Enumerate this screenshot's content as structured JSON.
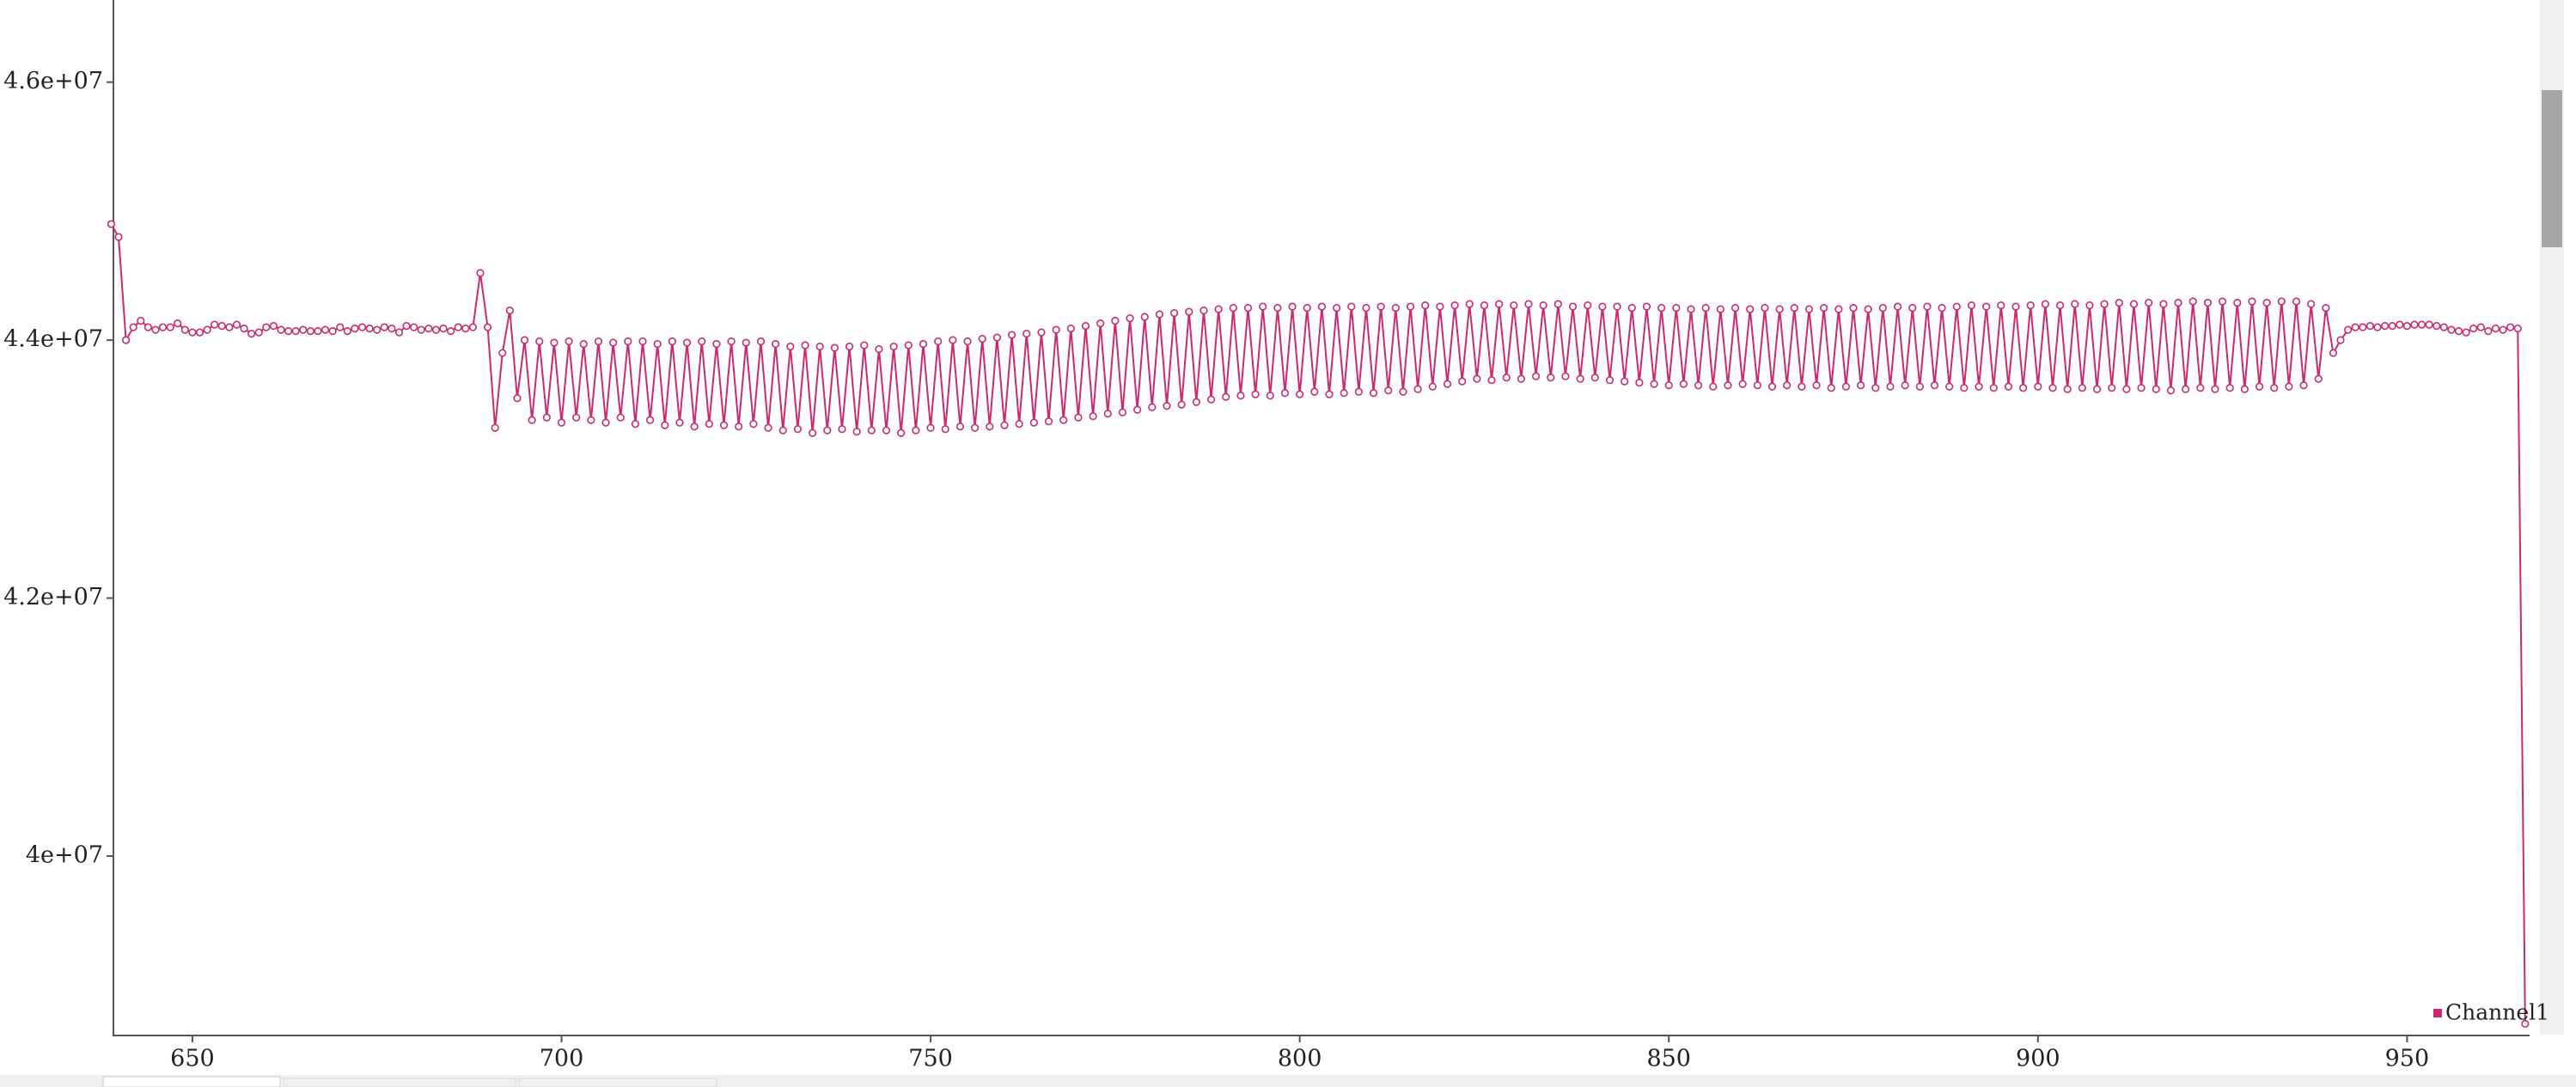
{
  "chart_data": {
    "type": "line",
    "x": [
      639,
      640,
      641,
      642,
      643,
      644,
      645,
      646,
      647,
      648,
      649,
      650,
      651,
      652,
      653,
      654,
      655,
      656,
      657,
      658,
      659,
      660,
      661,
      662,
      663,
      664,
      665,
      666,
      667,
      668,
      669,
      670,
      671,
      672,
      673,
      674,
      675,
      676,
      677,
      678,
      679,
      680,
      681,
      682,
      683,
      684,
      685,
      686,
      687,
      688,
      689,
      690,
      691,
      692,
      693,
      694,
      695,
      696,
      697,
      698,
      699,
      700,
      701,
      702,
      703,
      704,
      705,
      706,
      707,
      708,
      709,
      710,
      711,
      712,
      713,
      714,
      715,
      716,
      717,
      718,
      719,
      720,
      721,
      722,
      723,
      724,
      725,
      726,
      727,
      728,
      729,
      730,
      731,
      732,
      733,
      734,
      735,
      736,
      737,
      738,
      739,
      740,
      741,
      742,
      743,
      744,
      745,
      746,
      747,
      748,
      749,
      750,
      751,
      752,
      753,
      754,
      755,
      756,
      757,
      758,
      759,
      760,
      761,
      762,
      763,
      764,
      765,
      766,
      767,
      768,
      769,
      770,
      771,
      772,
      773,
      774,
      775,
      776,
      777,
      778,
      779,
      780,
      781,
      782,
      783,
      784,
      785,
      786,
      787,
      788,
      789,
      790,
      791,
      792,
      793,
      794,
      795,
      796,
      797,
      798,
      799,
      800,
      801,
      802,
      803,
      804,
      805,
      806,
      807,
      808,
      809,
      810,
      811,
      812,
      813,
      814,
      815,
      816,
      817,
      818,
      819,
      820,
      821,
      822,
      823,
      824,
      825,
      826,
      827,
      828,
      829,
      830,
      831,
      832,
      833,
      834,
      835,
      836,
      837,
      838,
      839,
      840,
      841,
      842,
      843,
      844,
      845,
      846,
      847,
      848,
      849,
      850,
      851,
      852,
      853,
      854,
      855,
      856,
      857,
      858,
      859,
      860,
      861,
      862,
      863,
      864,
      865,
      866,
      867,
      868,
      869,
      870,
      871,
      872,
      873,
      874,
      875,
      876,
      877,
      878,
      879,
      880,
      881,
      882,
      883,
      884,
      885,
      886,
      887,
      888,
      889,
      890,
      891,
      892,
      893,
      894,
      895,
      896,
      897,
      898,
      899,
      900,
      901,
      902,
      903,
      904,
      905,
      906,
      907,
      908,
      909,
      910,
      911,
      912,
      913,
      914,
      915,
      916,
      917,
      918,
      919,
      920,
      921,
      922,
      923,
      924,
      925,
      926,
      927,
      928,
      929,
      930,
      931,
      932,
      933,
      934,
      935,
      936,
      937,
      938,
      939,
      940,
      941,
      942,
      943,
      944,
      945,
      946,
      947,
      948,
      949,
      950,
      951,
      952,
      953,
      954,
      955,
      956,
      957,
      958,
      959,
      960,
      961,
      962,
      963,
      964,
      965,
      966
    ],
    "series": [
      {
        "name": "Channel1",
        "color": "#cc2a6e",
        "values": [
          44900000,
          44800000,
          44000000,
          44100000,
          44150000,
          44100000,
          44080000,
          44100000,
          44100000,
          44130000,
          44080000,
          44060000,
          44060000,
          44080000,
          44120000,
          44110000,
          44100000,
          44120000,
          44090000,
          44050000,
          44060000,
          44100000,
          44110000,
          44080000,
          44070000,
          44070000,
          44080000,
          44070000,
          44070000,
          44080000,
          44070000,
          44100000,
          44070000,
          44090000,
          44100000,
          44090000,
          44080000,
          44100000,
          44090000,
          44060000,
          44110000,
          44100000,
          44080000,
          44090000,
          44080000,
          44090000,
          44070000,
          44100000,
          44090000,
          44100000,
          44520000,
          44100000,
          43320000,
          43900000,
          44230000,
          43550000,
          44000000,
          43380000,
          43990000,
          43400000,
          43980000,
          43360000,
          43990000,
          43400000,
          43970000,
          43380000,
          43990000,
          43360000,
          43980000,
          43400000,
          43990000,
          43350000,
          43990000,
          43380000,
          43970000,
          43340000,
          43990000,
          43360000,
          43980000,
          43330000,
          43990000,
          43350000,
          43970000,
          43340000,
          43990000,
          43330000,
          43980000,
          43350000,
          43990000,
          43320000,
          43970000,
          43300000,
          43950000,
          43310000,
          43960000,
          43280000,
          43950000,
          43300000,
          43940000,
          43310000,
          43950000,
          43290000,
          43960000,
          43300000,
          43930000,
          43300000,
          43950000,
          43280000,
          43960000,
          43300000,
          43970000,
          43320000,
          43990000,
          43310000,
          44000000,
          43330000,
          43990000,
          43320000,
          44010000,
          43330000,
          44020000,
          43340000,
          44040000,
          43350000,
          44050000,
          43360000,
          44060000,
          43370000,
          44080000,
          43380000,
          44090000,
          43400000,
          44110000,
          43410000,
          44130000,
          43430000,
          44150000,
          43440000,
          44170000,
          43460000,
          44180000,
          43480000,
          44200000,
          43490000,
          44210000,
          43500000,
          44220000,
          43520000,
          44230000,
          43540000,
          44240000,
          43560000,
          44250000,
          43570000,
          44250000,
          43580000,
          44260000,
          43570000,
          44250000,
          43590000,
          44260000,
          43580000,
          44250000,
          43600000,
          44260000,
          43580000,
          44250000,
          43590000,
          44260000,
          43600000,
          44250000,
          43590000,
          44260000,
          43610000,
          44250000,
          43600000,
          44260000,
          43620000,
          44270000,
          43640000,
          44260000,
          43660000,
          44270000,
          43680000,
          44280000,
          43700000,
          44270000,
          43690000,
          44280000,
          43710000,
          44270000,
          43700000,
          44280000,
          43720000,
          44270000,
          43710000,
          44280000,
          43720000,
          44260000,
          43700000,
          44270000,
          43710000,
          44260000,
          43690000,
          44260000,
          43680000,
          44250000,
          43670000,
          44260000,
          43660000,
          44250000,
          43650000,
          44250000,
          43660000,
          44240000,
          43650000,
          44250000,
          43640000,
          44240000,
          43650000,
          44250000,
          43660000,
          44240000,
          43650000,
          44250000,
          43640000,
          44240000,
          43650000,
          44250000,
          43640000,
          44240000,
          43650000,
          44250000,
          43630000,
          44240000,
          43640000,
          44250000,
          43650000,
          44240000,
          43630000,
          44250000,
          43640000,
          44260000,
          43650000,
          44250000,
          43640000,
          44260000,
          43650000,
          44250000,
          43640000,
          44260000,
          43630000,
          44270000,
          43640000,
          44260000,
          43630000,
          44270000,
          43640000,
          44260000,
          43630000,
          44270000,
          43640000,
          44280000,
          43630000,
          44270000,
          43620000,
          44280000,
          43630000,
          44270000,
          43620000,
          44280000,
          43630000,
          44290000,
          43620000,
          44280000,
          43630000,
          44290000,
          43620000,
          44280000,
          43610000,
          44290000,
          43620000,
          44300000,
          43630000,
          44290000,
          43620000,
          44300000,
          43630000,
          44290000,
          43620000,
          44300000,
          43640000,
          44290000,
          43630000,
          44300000,
          43640000,
          44300000,
          43650000,
          44280000,
          43700000,
          44250000,
          43900000,
          44000000,
          44080000,
          44100000,
          44100000,
          44110000,
          44100000,
          44110000,
          44110000,
          44120000,
          44110000,
          44120000,
          44120000,
          44120000,
          44110000,
          44100000,
          44080000,
          44070000,
          44060000,
          44090000,
          44100000,
          44070000,
          44090000,
          44080000,
          44100000,
          44090000,
          38700000
        ]
      }
    ],
    "xlim": [
      639.3,
      966.6
    ],
    "xticks": [
      650,
      700,
      750,
      800,
      850,
      900,
      950
    ],
    "ylim": [
      38609000,
      46637000
    ],
    "yticks": [
      {
        "value": 40000000,
        "label": "4e+07"
      },
      {
        "value": 42000000,
        "label": "4.2e+07"
      },
      {
        "value": 44000000,
        "label": "4.4e+07"
      },
      {
        "value": 46000000,
        "label": "4.6e+07"
      }
    ],
    "grid": false,
    "legend": "lower right"
  }
}
